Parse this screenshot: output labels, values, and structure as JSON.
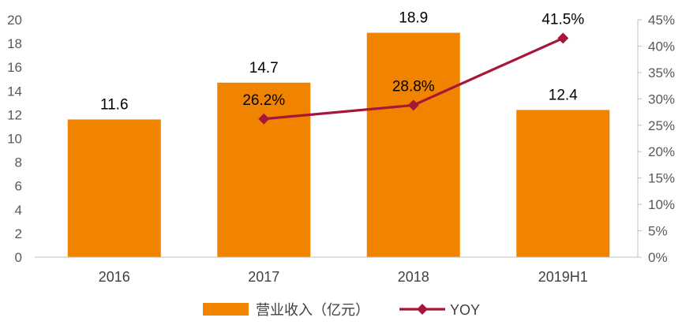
{
  "chart_data": {
    "type": "bar",
    "categories": [
      "2016",
      "2017",
      "2018",
      "2019H1"
    ],
    "series": [
      {
        "name": "营业收入（亿元）",
        "type": "bar",
        "axis": "left",
        "values": [
          11.6,
          14.7,
          18.9,
          12.4
        ],
        "labels": [
          "11.6",
          "14.7",
          "18.9",
          "12.4"
        ],
        "color": "#F08300"
      },
      {
        "name": "YOY",
        "type": "line",
        "axis": "right",
        "values": [
          null,
          26.2,
          28.8,
          41.5
        ],
        "labels": [
          "",
          "26.2%",
          "28.8%",
          "41.5%"
        ],
        "color": "#A6163A"
      }
    ],
    "y_left": {
      "min": 0,
      "max": 20,
      "ticks": [
        "0",
        "2",
        "4",
        "6",
        "8",
        "10",
        "12",
        "14",
        "16",
        "18",
        "20"
      ]
    },
    "y_right": {
      "min": 0,
      "max": 45,
      "ticks": [
        "0%",
        "5%",
        "10%",
        "15%",
        "20%",
        "25%",
        "30%",
        "35%",
        "40%",
        "45%"
      ]
    },
    "grid": false,
    "legend": {
      "position": "bottom-center"
    }
  }
}
